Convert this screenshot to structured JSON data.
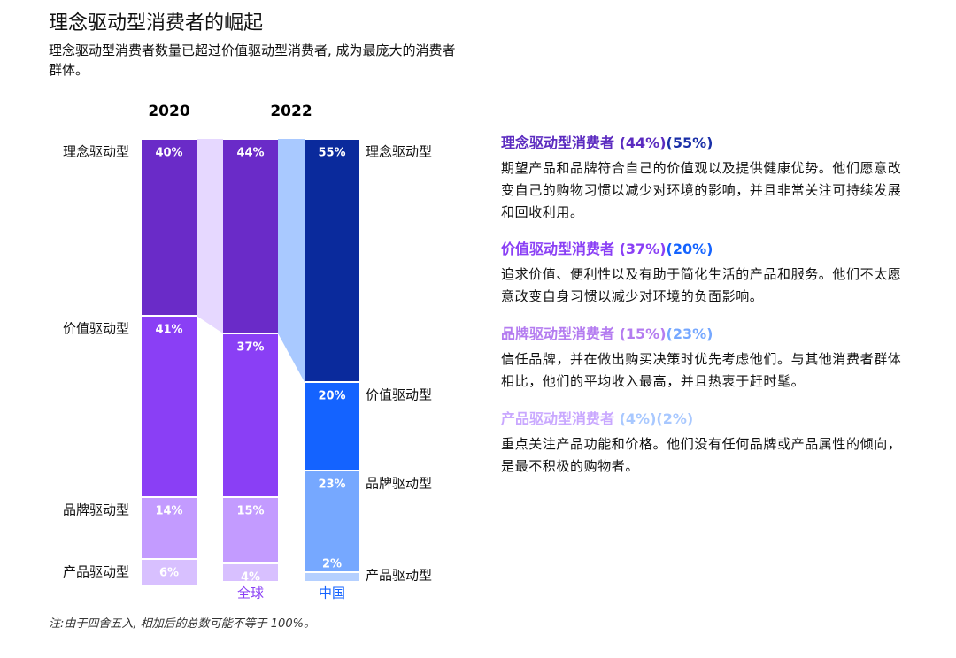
{
  "title": "理念驱动型消费者的崛起",
  "subtitle": "理念驱动型消费者数量已超过价值驱动型消费者, 成为最庞大的消费者群体。",
  "chart_data": {
    "type": "stacked_bar",
    "year_labels": [
      "2020",
      "2022"
    ],
    "categories": [
      null,
      "全球",
      "中国"
    ],
    "ylim": [
      0,
      100
    ],
    "series": [
      {
        "name": "理念驱动型",
        "colors": [
          "#6a2bc8",
          "#6a2bc8",
          "#0a2a9c"
        ],
        "values": [
          40,
          44,
          55
        ],
        "value_labels": [
          "40%",
          "44%",
          "55%"
        ]
      },
      {
        "name": "价值驱动型",
        "colors": [
          "#8a3ff5",
          "#8a3ff5",
          "#1463ff"
        ],
        "values": [
          41,
          37,
          20
        ],
        "value_labels": [
          "41%",
          "37%",
          "20%"
        ]
      },
      {
        "name": "品牌驱动型",
        "colors": [
          "#c39bff",
          "#c39bff",
          "#76a8ff"
        ],
        "values": [
          14,
          15,
          23
        ],
        "value_labels": [
          "14%",
          "15%",
          "23%"
        ]
      },
      {
        "name": "产品驱动型",
        "colors": [
          "#d8c0ff",
          "#d8c0ff",
          "#b5d0ff"
        ],
        "values": [
          6,
          4,
          2
        ],
        "value_labels": [
          "6%",
          "4%",
          "2%"
        ]
      }
    ]
  },
  "descriptions": [
    {
      "title": "理念驱动型消费者",
      "global": "(44%)",
      "china": "(55%)",
      "text": "期望产品和品牌符合自己的价值观以及提供健康优势。他们愿意改变自己的购物习惯以减少对环境的影响，并且非常关注可持续发展和回收利用。"
    },
    {
      "title": "价值驱动型消费者",
      "global": "(37%)",
      "china": "(20%)",
      "text": "追求价值、便利性以及有助于简化生活的产品和服务。他们不太愿意改变自身习惯以减少对环境的负面影响。"
    },
    {
      "title": "品牌驱动型消费者",
      "global": "(15%)",
      "china": "(23%)",
      "text": "信任品牌，并在做出购买决策时优先考虑他们。与其他消费者群体相比，他们的平均收入最高，并且热衷于赶时髦。"
    },
    {
      "title": "产品驱动型消费者",
      "global": "(4%)",
      "china": "(2%)",
      "text": "重点关注产品功能和价格。他们没有任何品牌或产品属性的倾向，是最不积极的购物者。"
    }
  ],
  "note": "注:由于四舍五入, 相加后的总数可能不等于 100%。"
}
